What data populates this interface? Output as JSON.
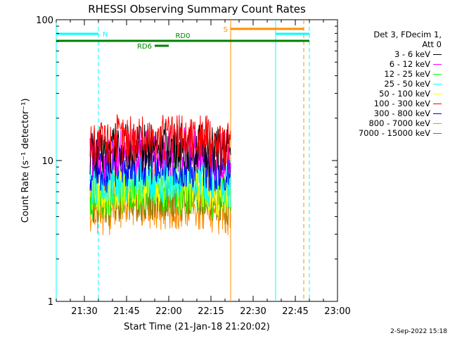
{
  "chart_data": {
    "type": "line",
    "title": "RHESSI Observing Summary Count Rates",
    "xlabel": "Start Time (21-Jan-18 21:20:02)",
    "ylabel": "Count Rate (s⁻¹ detector⁻¹)",
    "yscale": "log",
    "ylim": [
      1,
      100
    ],
    "xlim": [
      "21:20",
      "23:00"
    ],
    "x_ticks": [
      "21:30",
      "21:45",
      "22:00",
      "22:15",
      "22:30",
      "22:45",
      "23:00"
    ],
    "y_ticks": [
      "1",
      "10",
      "100"
    ],
    "legend_header": [
      "Det 3, FDecim 1,",
      "Att 0"
    ],
    "legend_placement": "right",
    "data_window": [
      "21:32",
      "22:22"
    ],
    "series": [
      {
        "name": "3 - 6 keV",
        "color": "#000000",
        "level": 12.5
      },
      {
        "name": "6 - 12 keV",
        "color": "#ff00ff",
        "level": 11.5
      },
      {
        "name": "12 - 25 keV",
        "color": "#00ff00",
        "level": 6.2
      },
      {
        "name": "25 - 50 keV",
        "color": "#00ffff",
        "level": 7.5
      },
      {
        "name": "50 - 100 keV",
        "color": "#ffff00",
        "level": 6.5
      },
      {
        "name": "100 - 300 keV",
        "color": "#ff0000",
        "level": 14.5
      },
      {
        "name": "300 - 800 keV",
        "color": "#0000ff",
        "level": 9.5
      },
      {
        "name": "800 - 7000 keV",
        "color": "#ff8c00",
        "level": 4.8
      },
      {
        "name": "7000 - 15000 keV",
        "color": "#8b7500",
        "level": 5.5
      }
    ],
    "annotations": {
      "night": {
        "label": "N",
        "color": "#00ffff",
        "intervals": [
          [
            "21:20",
            "21:35"
          ],
          [
            "22:38",
            "22:50"
          ]
        ]
      },
      "saa": {
        "label": "S",
        "color": "#ff8c00",
        "intervals": [
          [
            "22:22",
            "22:48"
          ]
        ]
      },
      "rd0": {
        "label": "RD0",
        "color": "#008000",
        "intervals": [
          [
            "21:20",
            "22:50"
          ]
        ]
      },
      "rd6": {
        "label": "RD6",
        "color": "#008000",
        "intervals": [
          [
            "21:55",
            "22:00"
          ]
        ]
      },
      "vlines": [
        {
          "time": "21:20",
          "color": "#00ffff",
          "style": "solid"
        },
        {
          "time": "21:35",
          "color": "#00ffff",
          "style": "dashed"
        },
        {
          "time": "22:22",
          "color": "#ff8c00",
          "style": "solid"
        },
        {
          "time": "22:38",
          "color": "#00ffff",
          "style": "solid"
        },
        {
          "time": "22:48",
          "color": "#ff8c00",
          "style": "dashed"
        },
        {
          "time": "22:50",
          "color": "#00ffff",
          "style": "dashed"
        }
      ]
    }
  },
  "footer": {
    "date_stamp": "2-Sep-2022 15:18"
  }
}
